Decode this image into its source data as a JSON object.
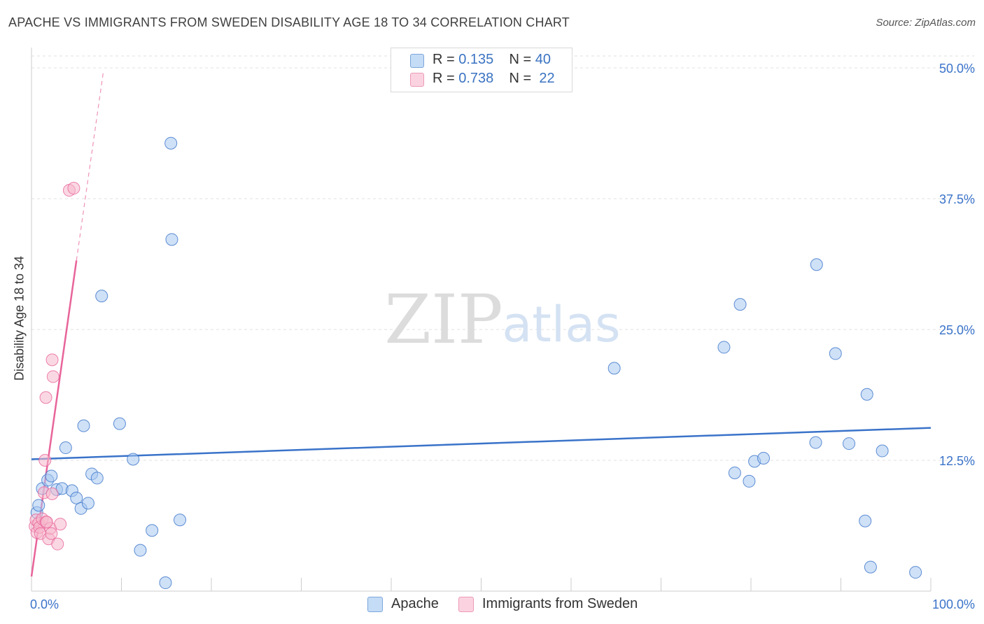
{
  "title": "APACHE VS IMMIGRANTS FROM SWEDEN DISABILITY AGE 18 TO 34 CORRELATION CHART",
  "source": "Source: ZipAtlas.com",
  "watermark": {
    "zip": "ZIP",
    "atlas": "atlas"
  },
  "legend": {
    "rows": [
      {
        "r_label": "R = ",
        "r_value": "0.135",
        "n_label": "N = ",
        "n_value": "40",
        "color": "#a8c8f0"
      },
      {
        "r_label": "R = ",
        "r_value": "0.738",
        "n_label": "N = ",
        "n_value": "22",
        "color": "#f5b8cc"
      }
    ]
  },
  "bottom_legend": [
    {
      "label": "Apache",
      "color": "#a8c8f0"
    },
    {
      "label": "Immigrants from Sweden",
      "color": "#f5b8cc"
    }
  ],
  "chart_data": {
    "type": "scatter",
    "title": "APACHE VS IMMIGRANTS FROM SWEDEN DISABILITY AGE 18 TO 34 CORRELATION CHART",
    "xlabel": "",
    "ylabel": "Disability Age 18 to 34",
    "xlim": [
      0,
      100
    ],
    "ylim": [
      0,
      50
    ],
    "x_tick_labels": [
      "0.0%",
      "100.0%"
    ],
    "y_ticks": [
      12.5,
      25.0,
      37.5,
      50.0
    ],
    "y_tick_labels": [
      "12.5%",
      "25.0%",
      "37.5%",
      "50.0%"
    ],
    "grid": true,
    "legend_position": "top-center",
    "series": [
      {
        "name": "Apache",
        "color": "#3a73c9",
        "fill": "#a8c8f0",
        "points": [
          [
            0.6,
            7.5
          ],
          [
            0.8,
            8.2
          ],
          [
            1.2,
            9.8
          ],
          [
            1.8,
            10.6
          ],
          [
            2.2,
            11.0
          ],
          [
            2.8,
            9.7
          ],
          [
            3.4,
            9.8
          ],
          [
            3.8,
            13.7
          ],
          [
            4.5,
            9.6
          ],
          [
            5.0,
            8.9
          ],
          [
            5.5,
            7.9
          ],
          [
            5.8,
            15.8
          ],
          [
            6.3,
            8.4
          ],
          [
            6.7,
            11.2
          ],
          [
            7.3,
            10.8
          ],
          [
            7.8,
            28.2
          ],
          [
            9.8,
            16.0
          ],
          [
            11.3,
            12.6
          ],
          [
            12.1,
            3.9
          ],
          [
            13.4,
            5.8
          ],
          [
            14.9,
            0.8
          ],
          [
            15.5,
            42.8
          ],
          [
            15.6,
            33.6
          ],
          [
            16.5,
            6.8
          ],
          [
            64.8,
            21.3
          ],
          [
            77.0,
            23.3
          ],
          [
            78.8,
            27.4
          ],
          [
            78.2,
            11.3
          ],
          [
            79.8,
            10.5
          ],
          [
            80.4,
            12.4
          ],
          [
            81.4,
            12.7
          ],
          [
            87.3,
            31.2
          ],
          [
            87.2,
            14.2
          ],
          [
            89.4,
            22.7
          ],
          [
            90.9,
            14.1
          ],
          [
            92.7,
            6.7
          ],
          [
            92.9,
            18.8
          ],
          [
            93.3,
            2.3
          ],
          [
            94.6,
            13.4
          ],
          [
            98.3,
            1.8
          ]
        ],
        "trend": {
          "x": [
            0,
            100
          ],
          "y": [
            12.6,
            15.6
          ],
          "style": "solid"
        }
      },
      {
        "name": "Immigrants from Sweden",
        "color": "#e8649a",
        "fill": "#f5b8cc",
        "points": [
          [
            0.4,
            6.2
          ],
          [
            0.5,
            6.8
          ],
          [
            0.6,
            5.6
          ],
          [
            0.8,
            6.5
          ],
          [
            0.9,
            6.1
          ],
          [
            1.0,
            5.5
          ],
          [
            1.2,
            6.9
          ],
          [
            1.4,
            9.4
          ],
          [
            1.5,
            12.5
          ],
          [
            1.6,
            6.6
          ],
          [
            1.6,
            18.5
          ],
          [
            1.9,
            5.0
          ],
          [
            2.1,
            6.0
          ],
          [
            2.3,
            9.3
          ],
          [
            2.2,
            5.5
          ],
          [
            2.3,
            22.1
          ],
          [
            2.4,
            20.5
          ],
          [
            2.9,
            4.5
          ],
          [
            3.2,
            6.4
          ],
          [
            4.2,
            38.3
          ],
          [
            4.7,
            38.5
          ],
          [
            1.7,
            6.6
          ]
        ],
        "trend": {
          "x": [
            0,
            5.0
          ],
          "y": [
            1.4,
            31.6
          ],
          "style": "solid"
        },
        "trend_extension": {
          "x": [
            5.0,
            8.0
          ],
          "y": [
            31.6,
            49.7
          ],
          "style": "dashed"
        }
      }
    ]
  }
}
